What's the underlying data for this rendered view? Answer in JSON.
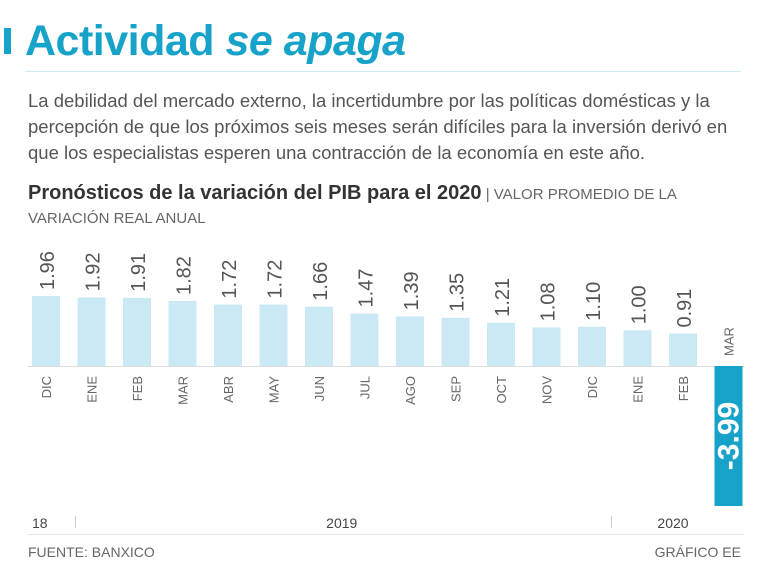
{
  "header": {
    "title_main": "Actividad",
    "title_italic": "se apaga",
    "deck": "La debilidad del mercado externo, la incertidumbre por las políticas domésticas y la percepción de que los próximos seis meses serán difíciles para la inversión derivó en que los especialistas esperen una contracción de la economía en este año."
  },
  "subhead": {
    "bold": "Pronósticos de la variación del PIB para el 2020",
    "separator": "|",
    "light": "VALOR PROMEDIO DE LA VARIACIÓN REAL ANUAL"
  },
  "footer": {
    "source": "FUENTE: BANXICO",
    "credit": "GRÁFICO EE"
  },
  "colors": {
    "accent": "#17a3c9",
    "bar": "#cbe9f5",
    "negative_bar": "#17a3c9",
    "text": "#555555"
  },
  "chart_data": {
    "type": "bar",
    "title": "Pronósticos de la variación del PIB para el 2020",
    "subtitle": "VALOR PROMEDIO DE LA VARIACIÓN REAL ANUAL",
    "categories": [
      "DIC",
      "ENE",
      "FEB",
      "MAR",
      "ABR",
      "MAY",
      "JUN",
      "JUL",
      "AGO",
      "SEP",
      "OCT",
      "NOV",
      "DIC",
      "ENE",
      "FEB",
      "MAR"
    ],
    "values": [
      1.96,
      1.92,
      1.91,
      1.82,
      1.72,
      1.72,
      1.66,
      1.47,
      1.39,
      1.35,
      1.21,
      1.08,
      1.1,
      1.0,
      0.91,
      -3.99
    ],
    "value_labels": [
      "1.96",
      "1.92",
      "1.91",
      "1.82",
      "1.72",
      "1.72",
      "1.66",
      "1.47",
      "1.39",
      "1.35",
      "1.21",
      "1.08",
      "1.10",
      "1.00",
      "0.91",
      "-3.99"
    ],
    "year_groups": [
      {
        "label": "18",
        "start": 0,
        "end": 0
      },
      {
        "label": "2019",
        "start": 1,
        "end": 12
      },
      {
        "label": "2020",
        "start": 13,
        "end": 15
      }
    ],
    "ylim": [
      -3.99,
      1.96
    ],
    "xlabel": "",
    "ylabel": ""
  }
}
